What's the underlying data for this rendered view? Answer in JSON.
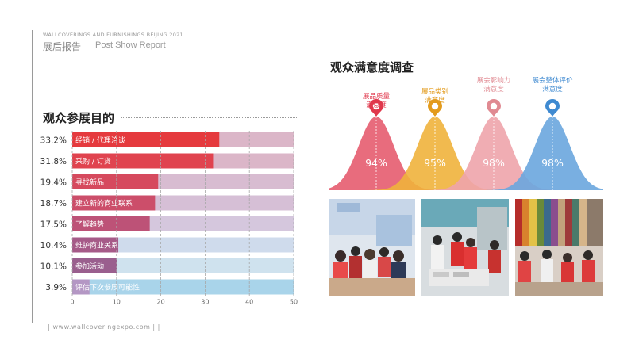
{
  "header": {
    "expo_name": "WALLCOVERINGS AND FURNISHINGS BEIJING 2021",
    "report_cn": "展后报告",
    "report_en": "Post Show Report"
  },
  "footer": {
    "text": "|  |    www.wallcoveringexpo.com  |  |"
  },
  "purpose": {
    "title": "观众参展目的"
  },
  "satisfaction": {
    "title": "观众满意度调查"
  },
  "photos": [
    {
      "name": "photo-booth-visitors"
    },
    {
      "name": "photo-sample-counter"
    },
    {
      "name": "photo-fabric-samples"
    }
  ],
  "colors": {
    "bar_track": "#dbb6c8",
    "bar_track_light": "#cfe3ee",
    "grid": "#a7a7a7"
  },
  "chart_data": [
    {
      "type": "bar",
      "orientation": "horizontal",
      "title": "观众参展目的",
      "categories": [
        "经销 / 代理洽谈",
        "采购 / 订货",
        "寻找新品",
        "建立新的商业联系",
        "了解趋势",
        "维护商业关系",
        "参加活动",
        "评估下次参展可能性"
      ],
      "values": [
        33.2,
        31.8,
        19.4,
        18.7,
        17.5,
        10.4,
        10.1,
        3.9
      ],
      "value_labels": [
        "33.2%",
        "31.8%",
        "19.4%",
        "18.7%",
        "17.5%",
        "10.4%",
        "10.1%",
        "3.9%"
      ],
      "bar_colors": [
        "#e53a3e",
        "#e0434f",
        "#d64a5e",
        "#cc4e6a",
        "#bd5277",
        "#a65a88",
        "#9a5f8e",
        "#b497c4"
      ],
      "track_colors": [
        "#dbb6c8",
        "#dbb6c8",
        "#d8bcd1",
        "#d6bfd6",
        "#d5c7dd",
        "#cfdbec",
        "#cfe2ee",
        "#a9d4ea"
      ],
      "xlim": [
        0,
        50
      ],
      "xticks": [
        0,
        10,
        20,
        30,
        40,
        50
      ],
      "grid": "dashed vertical"
    },
    {
      "type": "area",
      "title": "观众满意度调查",
      "categories": [
        "展品质量\n满意度",
        "展品类别\n满意度",
        "展会影响力\n满意度",
        "展会整体评价\n满意度"
      ],
      "values": [
        94,
        95,
        98,
        98
      ],
      "value_labels": [
        "94%",
        "95%",
        "98%",
        "98%"
      ],
      "colors": [
        "#e65c6f",
        "#f0b23c",
        "#eea4ab",
        "#6aa6de"
      ],
      "label_colors": [
        "#e0384c",
        "#e39b1c",
        "#e08a92",
        "#3f8ad1"
      ]
    }
  ]
}
